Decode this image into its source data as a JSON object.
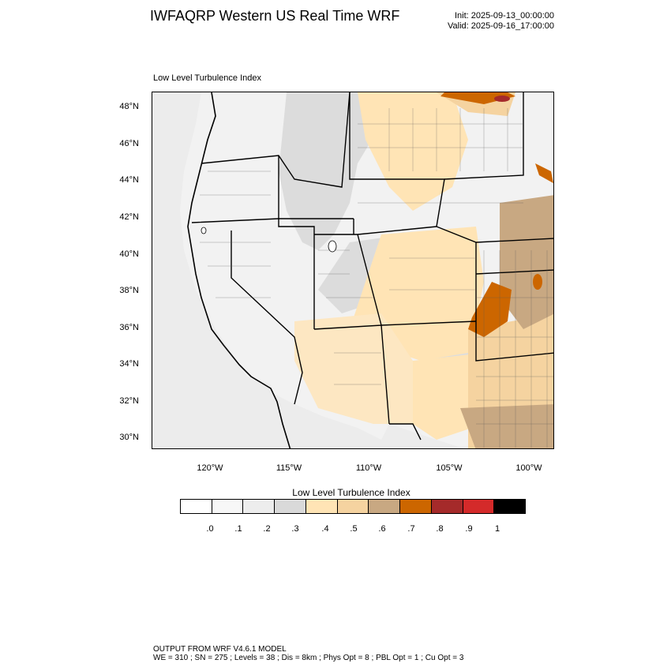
{
  "header": {
    "title": "IWFAQRP Western US Real Time WRF",
    "init": "Init: 2025-09-13_00:00:00",
    "valid": "Valid: 2025-09-16_17:00:00"
  },
  "plot": {
    "title": "Low Level Turbulence Index",
    "lat_labels": [
      "48°N",
      "46°N",
      "44°N",
      "42°N",
      "40°N",
      "38°N",
      "36°N",
      "34°N",
      "32°N",
      "30°N"
    ],
    "lon_labels": [
      "120°W",
      "115°W",
      "110°W",
      "105°W",
      "100°W"
    ]
  },
  "colorbar": {
    "title": "Low Level Turbulence Index",
    "labels": [
      ".0",
      ".1",
      ".2",
      ".3",
      ".4",
      ".5",
      ".6",
      ".7",
      ".8",
      ".9",
      "1"
    ],
    "colors": [
      "#ffffff",
      "#f7f7f7",
      "#ededed",
      "#d9d9d9",
      "#ffe4b5",
      "#f5d3a0",
      "#c8a882",
      "#cc6600",
      "#a52a2a",
      "#d42a2a",
      "#000000"
    ]
  },
  "footer": {
    "line1": "OUTPUT FROM WRF V4.6.1 MODEL",
    "line2": "WE = 310 ; SN = 275 ; Levels = 38 ; Dis = 8km ; Phys Opt = 8 ; PBL Opt = 1 ; Cu Opt = 3"
  }
}
